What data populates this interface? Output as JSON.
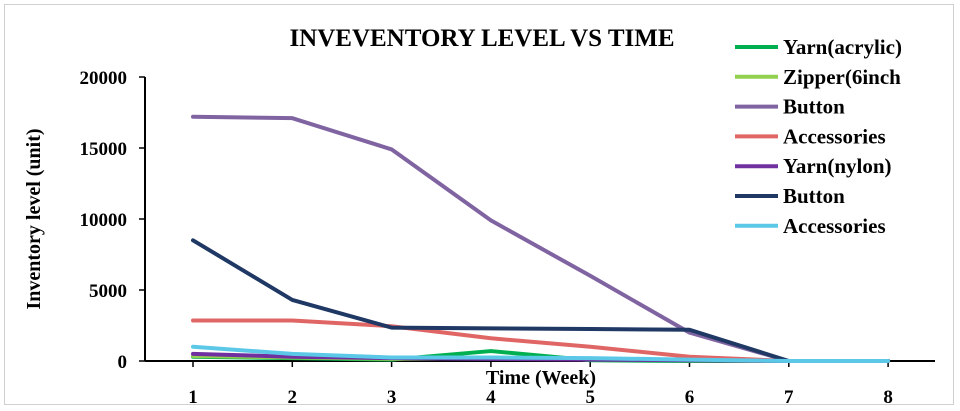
{
  "chart_data": {
    "type": "line",
    "title": "INVEVENTORY LEVEL VS TIME",
    "xlabel": "Time (Week)",
    "ylabel": "Inventory level (unit)",
    "x": [
      1,
      2,
      3,
      4,
      5,
      6,
      7,
      8
    ],
    "x_ticks": [
      "1",
      "2",
      "3",
      "4",
      "5",
      "6",
      "7",
      "8"
    ],
    "y_ticks": [
      "0",
      "5000",
      "10000",
      "15000",
      "20000"
    ],
    "ylim": [
      0,
      20000
    ],
    "grid": false,
    "legend_position": "right",
    "series": [
      {
        "name": "Yarn(acrylic)",
        "color": "#00B050",
        "values": [
          300,
          200,
          100,
          700,
          50,
          0,
          0,
          0
        ]
      },
      {
        "name": "Zipper(6inch",
        "color": "#92D050",
        "values": [
          350,
          250,
          150,
          200,
          150,
          50,
          0,
          0
        ]
      },
      {
        "name": "Button",
        "color": "#8064A2",
        "values": [
          17200,
          17100,
          14900,
          9900,
          6000,
          2000,
          0,
          0
        ]
      },
      {
        "name": "Accessories",
        "color": "#E06666",
        "values": [
          2850,
          2850,
          2450,
          1600,
          1000,
          300,
          0,
          0
        ]
      },
      {
        "name": "Yarn(nylon)",
        "color": "#7030A0",
        "values": [
          500,
          300,
          200,
          150,
          100,
          50,
          0,
          0
        ]
      },
      {
        "name": "Button",
        "color": "#1F3864",
        "values": [
          8500,
          4300,
          2350,
          2300,
          2250,
          2200,
          0,
          0
        ]
      },
      {
        "name": "Accessories",
        "color": "#5BC8E8",
        "values": [
          1000,
          500,
          250,
          250,
          200,
          100,
          0,
          0
        ]
      }
    ]
  }
}
